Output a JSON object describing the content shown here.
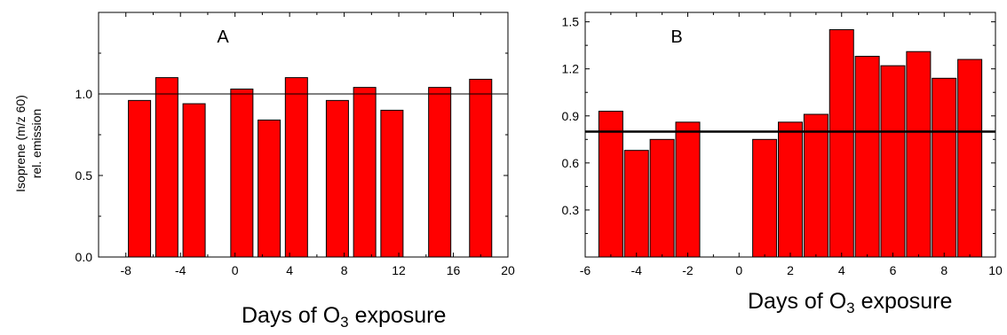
{
  "chart_data": [
    {
      "type": "bar",
      "panel_label": "A",
      "ylabel_lines": [
        "Isoprene (m/z 60)",
        "rel. emission"
      ],
      "xlabel_parts": {
        "before": "Days of O",
        "sub": "3",
        "after": " exposure"
      },
      "xlim": [
        -10,
        20
      ],
      "ylim": [
        0,
        1.5
      ],
      "xticks": [
        "-8",
        "-4",
        "0",
        "4",
        "8",
        "12",
        "16",
        "20"
      ],
      "yticks": [
        "0.0",
        "0.5",
        "1.0"
      ],
      "reference_line": 1.0,
      "x": [
        -7,
        -5,
        -3,
        0.5,
        2.5,
        4.5,
        7.5,
        9.5,
        11.5,
        15,
        18
      ],
      "values": [
        0.96,
        1.1,
        0.94,
        1.03,
        0.84,
        1.1,
        0.96,
        1.04,
        0.9,
        1.04,
        1.09
      ],
      "bar_color": "#ff0000",
      "grid": false
    },
    {
      "type": "bar",
      "panel_label": "B",
      "ylabel_lines": [],
      "xlabel_parts": {
        "before": "Days of O",
        "sub": "3",
        "after": " exposure"
      },
      "xlim": [
        -6,
        10
      ],
      "ylim": [
        0,
        1.56
      ],
      "xticks": [
        "-6",
        "-4",
        "-2",
        "0",
        "2",
        "4",
        "6",
        "8",
        "10"
      ],
      "yticks": [
        "0.3",
        "0.6",
        "0.9",
        "1.2",
        "1.5"
      ],
      "reference_line": 0.8,
      "x": [
        -5,
        -4,
        -3,
        -2,
        1,
        2,
        3,
        4,
        5,
        6,
        7,
        8,
        9
      ],
      "values": [
        0.93,
        0.68,
        0.75,
        0.86,
        0.75,
        0.86,
        0.91,
        1.45,
        1.28,
        1.22,
        1.31,
        1.14,
        1.26
      ],
      "bar_color": "#ff0000",
      "grid": false
    }
  ]
}
